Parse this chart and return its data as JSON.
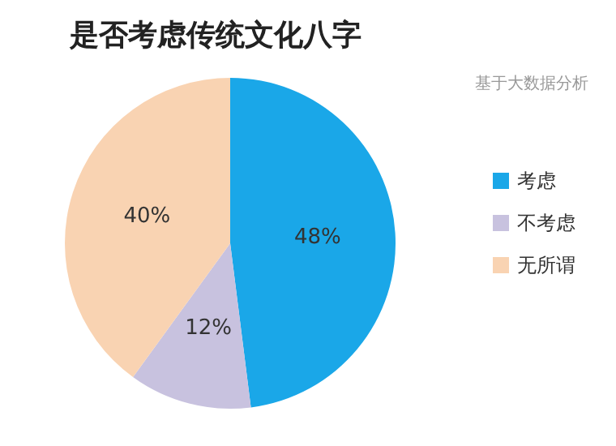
{
  "chart_data": {
    "type": "pie",
    "title": "是否考虑传统文化八字",
    "subtitle": "基于大数据分析",
    "categories": [
      "考虑",
      "不考虑",
      "无所谓"
    ],
    "values": [
      48,
      12,
      40
    ],
    "colors": [
      "#1aa7e8",
      "#c8c2df",
      "#f9d3b2"
    ],
    "value_labels": [
      "48%",
      "12%",
      "40%"
    ],
    "legend": "right"
  }
}
